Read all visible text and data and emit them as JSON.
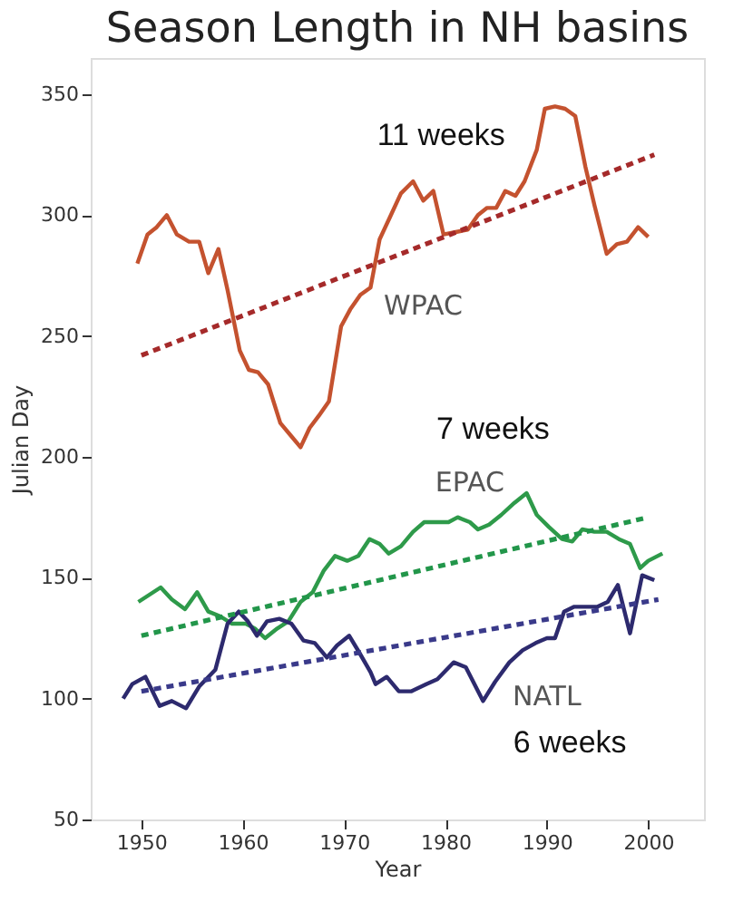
{
  "chart_data": {
    "type": "line",
    "title": "Season Length in NH basins",
    "xlabel": "Year",
    "ylabel": "Julian Day",
    "xlim": [
      1945,
      2005.5
    ],
    "ylim": [
      50,
      365
    ],
    "xticks": [
      1950,
      1960,
      1970,
      1980,
      1990,
      2000
    ],
    "yticks": [
      50,
      100,
      150,
      200,
      250,
      300,
      350
    ],
    "grid": false,
    "marker": "none",
    "line_style": "solid",
    "series": [
      {
        "name": "WPAC",
        "color": "#c4522f",
        "x": [
          1949.6,
          1950.6,
          1951.5,
          1952.5,
          1953.5,
          1954.7,
          1955.7,
          1956.6,
          1957.6,
          1958.5,
          1959.7,
          1960.6,
          1961.5,
          1962.5,
          1963.7,
          1964.7,
          1965.7,
          1966.6,
          1967.5,
          1968.5,
          1969.7,
          1970.6,
          1971.6,
          1972.6,
          1973.5,
          1974.5,
          1975.6,
          1976.8,
          1977.8,
          1978.8,
          1979.8,
          1981,
          1982.2,
          1983.2,
          1984.1,
          1985,
          1985.9,
          1986.9,
          1987.8,
          1989,
          1989.8,
          1990.8,
          1991.8,
          1992.8,
          1993.8,
          1994.7,
          1995.9,
          1996.9,
          1997.9,
          1999,
          2000
        ],
        "values": [
          280,
          292,
          295,
          300,
          292,
          289,
          289,
          276,
          286,
          269,
          244,
          236,
          235,
          230,
          214,
          209,
          204,
          212,
          217,
          223,
          254,
          261,
          267,
          270,
          290,
          299,
          309,
          314,
          306,
          310,
          292,
          293,
          294,
          300,
          303,
          303,
          310,
          308,
          314,
          327,
          344,
          345,
          344,
          341,
          320,
          304,
          284,
          288,
          289,
          295,
          291
        ]
      },
      {
        "name": "EPAC",
        "color": "#2e9a4a",
        "x": [
          1949.7,
          1950.8,
          1951.9,
          1953,
          1954.3,
          1955.5,
          1956.6,
          1957.8,
          1958.9,
          1960.3,
          1961.2,
          1962.2,
          1963.4,
          1964.5,
          1965.7,
          1966.9,
          1968,
          1969.1,
          1970.3,
          1971.4,
          1972.5,
          1973.5,
          1974.4,
          1975.6,
          1976.8,
          1977.9,
          1979.1,
          1980.3,
          1981.2,
          1982.4,
          1983.2,
          1984.3,
          1985.5,
          1986.8,
          1988,
          1989,
          1990.2,
          1991.5,
          1992.5,
          1993.5,
          1994.7,
          1995.9,
          1997.1,
          1998.2,
          1999.2,
          2000,
          2001.4
        ],
        "values": [
          140,
          143,
          146,
          141,
          137,
          144,
          136,
          134,
          131,
          131,
          129,
          125,
          129,
          132,
          140,
          144,
          153,
          159,
          157,
          159,
          166,
          164,
          160,
          163,
          169,
          173,
          173,
          173,
          175,
          173,
          170,
          172,
          176,
          181,
          185,
          176,
          171,
          166,
          165,
          170,
          169,
          169,
          166,
          164,
          154,
          157,
          160
        ]
      },
      {
        "name": "NATL",
        "color": "#2d2a6e",
        "x": [
          1948.2,
          1949.1,
          1950.4,
          1951.8,
          1953,
          1954.4,
          1955.7,
          1957.3,
          1958.5,
          1959.6,
          1960.5,
          1961.4,
          1962.4,
          1963.6,
          1964.8,
          1966,
          1967.1,
          1968.3,
          1969.3,
          1970.5,
          1971.5,
          1972.6,
          1973.1,
          1974.2,
          1975.4,
          1976.6,
          1978.1,
          1979.2,
          1980.8,
          1982,
          1983.7,
          1984.9,
          1986.3,
          1987.6,
          1988.9,
          1990,
          1990.8,
          1991.7,
          1992.7,
          1993.9,
          1995,
          1996,
          1997,
          1998.2,
          1999.4,
          2000.6
        ],
        "values": [
          100,
          106,
          109,
          97,
          99,
          96,
          105,
          112,
          131,
          136,
          132,
          126,
          132,
          133,
          131,
          124,
          123,
          117,
          122,
          126,
          119,
          111,
          106,
          109,
          103,
          103,
          106,
          108,
          115,
          113,
          99,
          107,
          115,
          120,
          123,
          125,
          125,
          136,
          138,
          138,
          138,
          140,
          147,
          127,
          151,
          149
        ]
      },
      {
        "color": "#a52a2a",
        "line_style": "dashed",
        "x": [
          1950,
          2000.6
        ],
        "values": [
          242,
          325
        ]
      },
      {
        "color": "#22964a",
        "line_style": "dashed",
        "x": [
          1950,
          2000
        ],
        "values": [
          126,
          175
        ]
      },
      {
        "color": "#3a3a8a",
        "line_style": "dashed",
        "x": [
          1950,
          2001
        ],
        "values": [
          103,
          141
        ]
      }
    ],
    "annotations": [
      "11 weeks",
      "7 weeks",
      "6 weeks"
    ]
  }
}
